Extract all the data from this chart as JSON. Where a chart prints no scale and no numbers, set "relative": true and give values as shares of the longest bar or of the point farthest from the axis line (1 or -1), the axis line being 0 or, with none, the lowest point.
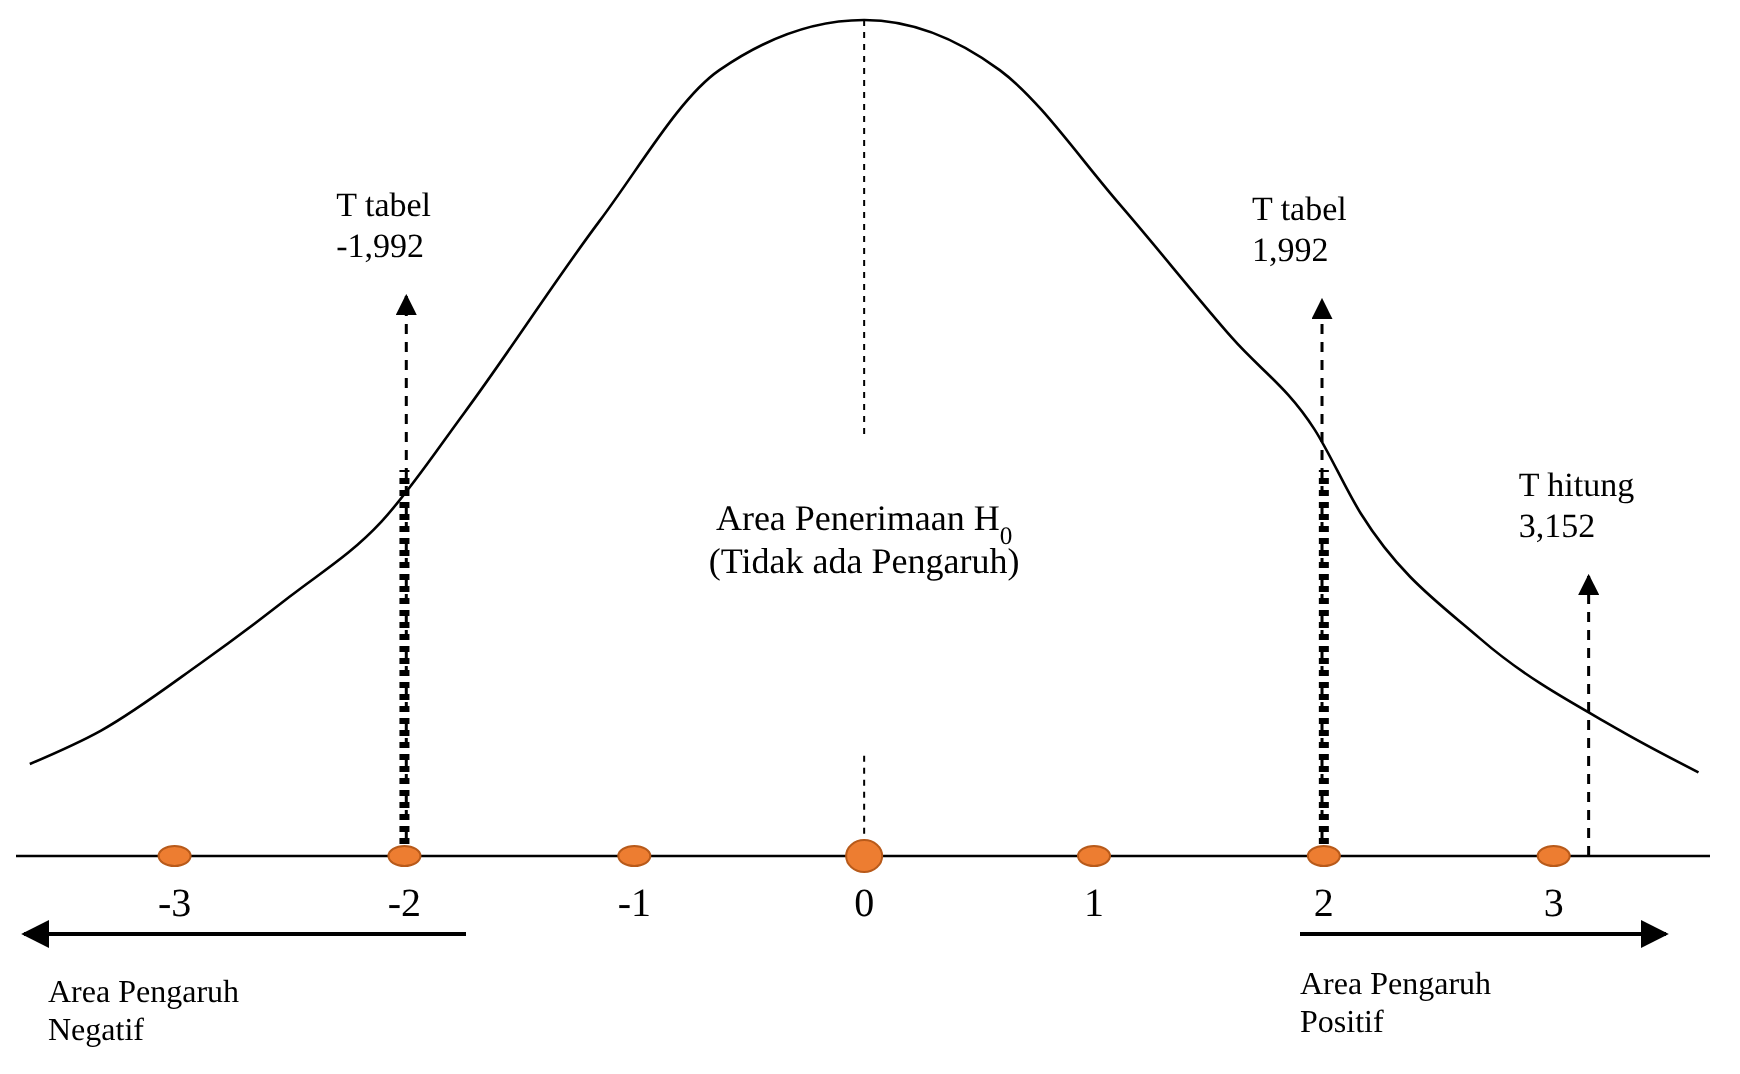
{
  "chart_data": {
    "type": "line",
    "relative": true,
    "x": [
      -3.63,
      -3.32,
      -2.89,
      -2.5,
      -2.1,
      -1.74,
      -1.15,
      -0.63,
      0,
      0.59,
      1.11,
      1.6,
      1.96,
      2.16,
      2.68,
      3.29,
      3.63
    ],
    "series": [
      {
        "color": "#000000",
        "values": [
          0.11,
          0.15,
          0.23,
          0.31,
          0.4,
          0.53,
          0.76,
          0.94,
          1,
          0.94,
          0.78,
          0.62,
          0.51,
          0.41,
          0.26,
          0.15,
          0.1
        ]
      }
    ],
    "xlim": [
      -3.69,
      3.68
    ],
    "xticks": [
      -3,
      -2,
      -1,
      0,
      1,
      2,
      3
    ],
    "tick_labels": "x",
    "grid": false,
    "marker": "none",
    "line_style": "solid",
    "ref_lines": [
      {
        "axis": "x",
        "value": -1.992,
        "label": "T tabel\n-1,992",
        "line_style": "dashed"
      },
      {
        "axis": "x",
        "value": 1.992,
        "label": "T tabel\n1,992",
        "line_style": "dashed"
      },
      {
        "axis": "x",
        "value": 3.152,
        "label": "T hitung\n3,152",
        "line_style": "dashed"
      },
      {
        "axis": "x",
        "value": 0,
        "line_style": "dotted"
      },
      {
        "axis": "x",
        "value": -2,
        "line_style": "dotted"
      },
      {
        "axis": "x",
        "value": 2,
        "line_style": "dotted"
      }
    ],
    "annotations": [
      "Area Penerimaan H$_{0}$\n(Tidak ada Pengaruh)",
      "Area Pengaruh\nNegatif",
      "Area Pengaruh\nPositif"
    ]
  }
}
